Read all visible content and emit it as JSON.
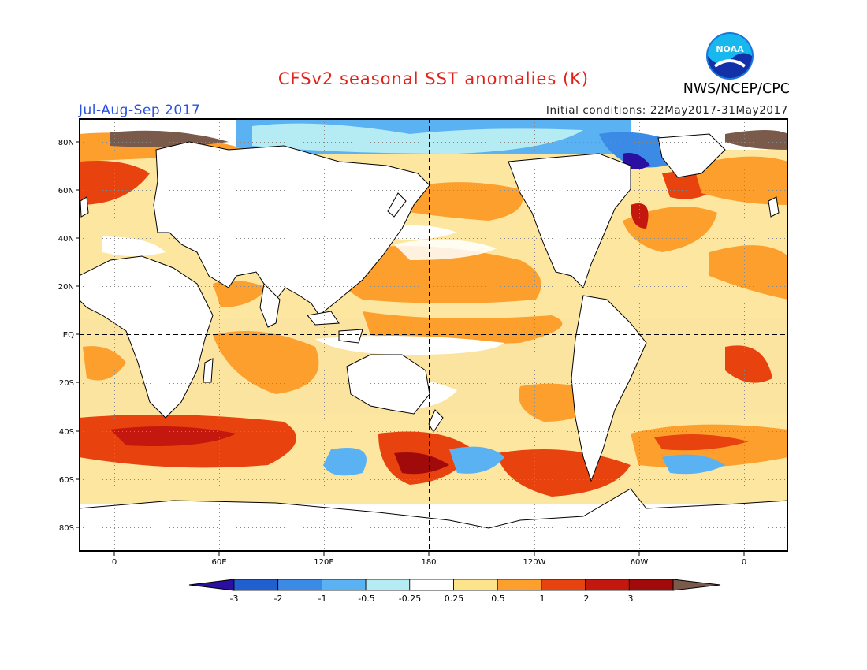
{
  "header": {
    "title": "CFSv2 seasonal SST anomalies (K)",
    "period": "Jul-Aug-Sep 2017",
    "initial_conditions": "Initial conditions: 22May2017-31May2017",
    "agency": "NWS/NCEP/CPC",
    "logo_text": "NOAA"
  },
  "map": {
    "projection": "cylindrical",
    "lat_labels": [
      "80N",
      "60N",
      "40N",
      "20N",
      "EQ",
      "20S",
      "40S",
      "60S",
      "80S"
    ],
    "lon_labels": [
      "0",
      "60E",
      "120E",
      "180",
      "120W",
      "60W",
      "0"
    ],
    "grid": "dotted",
    "reference_lines": [
      "EQ",
      "180"
    ]
  },
  "colorbar": {
    "labels": [
      "-3",
      "-2",
      "-1",
      "-0.5",
      "-0.25",
      "0.25",
      "0.5",
      "1",
      "2",
      "3"
    ],
    "colors": [
      "#2a0fa0",
      "#1f5fd0",
      "#3a8ae6",
      "#5ab2f2",
      "#b5ecf4",
      "#ffffff",
      "#fde48a",
      "#fd9f2c",
      "#e8420e",
      "#c4180f",
      "#a00a0a",
      "#7a5a4a"
    ]
  },
  "icons": {
    "logo": "noaa-logo-icon"
  }
}
